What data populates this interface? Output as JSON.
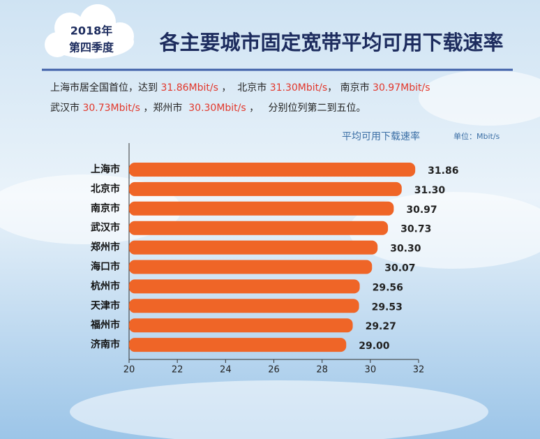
{
  "chart_data": {
    "type": "bar",
    "badge": [
      "2018年",
      "第四季度"
    ],
    "title": "各主要城市固定宽带平均可用下载速率",
    "description": [
      [
        {
          "text": "上海市居全国首位，达到 ",
          "color": "#222222"
        },
        {
          "text": "31.86Mbit/s",
          "color": "#e2372b"
        },
        {
          "text": " ，  北京市 ",
          "color": "#222222"
        },
        {
          "text": "31.30Mbit/s",
          "color": "#e2372b"
        },
        {
          "text": "， 南京市 ",
          "color": "#222222"
        },
        {
          "text": "30.97Mbit/s",
          "color": "#e2372b"
        }
      ],
      [
        {
          "text": "武汉市 ",
          "color": "#222222"
        },
        {
          "text": "30.73Mbit/s",
          "color": "#e2372b"
        },
        {
          "text": " ，郑州市  ",
          "color": "#222222"
        },
        {
          "text": "30.30Mbit/s",
          "color": "#e2372b"
        },
        {
          "text": " ，   分别位列第二到五位。",
          "color": "#222222"
        }
      ]
    ],
    "value_axis_label": "平均可用下载速率",
    "unit": "单位：Mbit/s",
    "categories": [
      "上海市",
      "北京市",
      "南京市",
      "武汉市",
      "郑州市",
      "海口市",
      "杭州市",
      "天津市",
      "福州市",
      "济南市"
    ],
    "values": [
      31.86,
      31.3,
      30.97,
      30.73,
      30.3,
      30.07,
      29.56,
      29.53,
      29.27,
      29.0
    ],
    "value_labels": [
      "31.86",
      "31.30",
      "30.97",
      "30.73",
      "30.30",
      "30.07",
      "29.56",
      "29.53",
      "29.27",
      "29.00"
    ],
    "color": "#ef6527",
    "xlim": [
      20,
      32
    ],
    "xticks": [
      20,
      22,
      24,
      26,
      28,
      30,
      32
    ]
  }
}
